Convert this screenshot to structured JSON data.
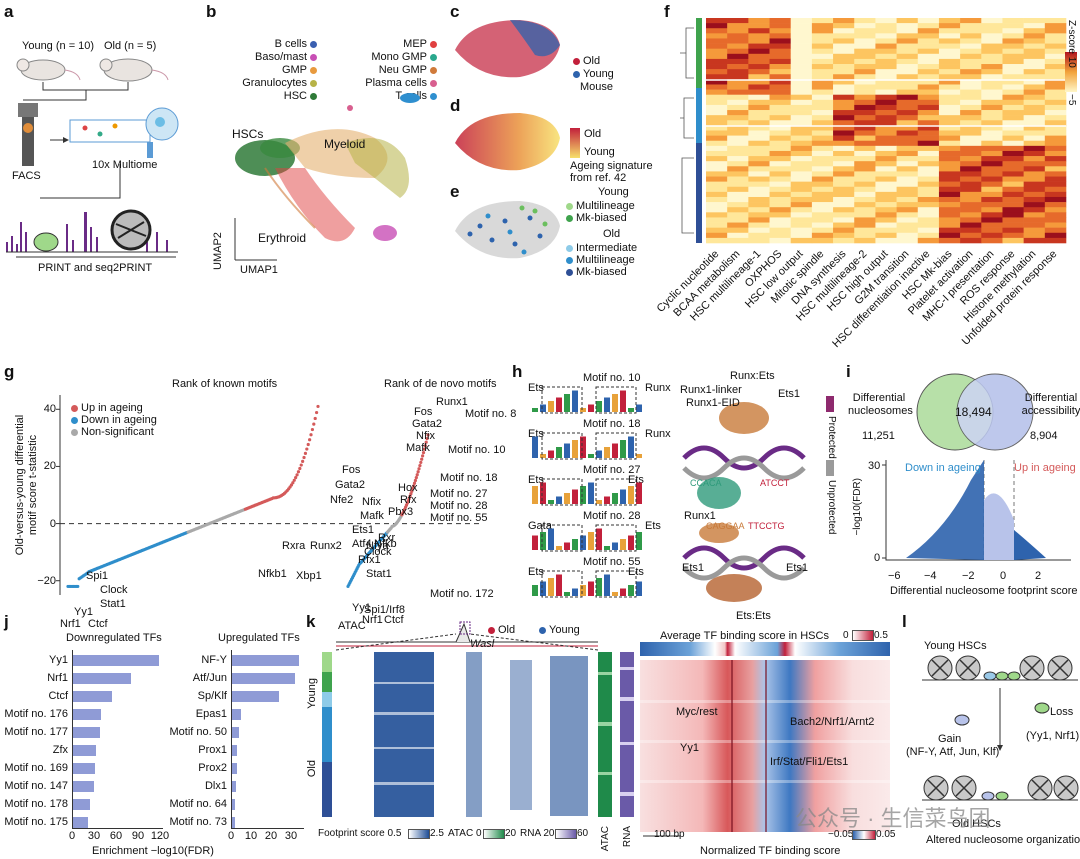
{
  "panels": {
    "a": "a",
    "b": "b",
    "c": "c",
    "d": "d",
    "e": "e",
    "f": "f",
    "g": "g",
    "h": "h",
    "i": "i",
    "j": "j",
    "k": "k",
    "l": "l"
  },
  "colors": {
    "old": "#c2203b",
    "young": "#2e63ad",
    "accent": "#8f9bd6",
    "up": "#d45a5a",
    "down": "#2f8ecb",
    "ns": "#a9a9a9"
  },
  "panel_a": {
    "young": "Young (n = 10)",
    "old": "Old (n = 5)",
    "facs": "FACS",
    "multiome": "10x Multiome",
    "print": "PRINT and seq2PRINT"
  },
  "panel_b": {
    "legend_left": [
      "B cells",
      "Baso/mast",
      "GMP",
      "Granulocytes",
      "HSC"
    ],
    "legend_right": [
      "MEP",
      "Mono GMP",
      "Neu GMP",
      "Plasma cells",
      "T cells"
    ],
    "legend_left_colors": [
      "#3a5fb0",
      "#c84fb5",
      "#e89a3e",
      "#b7b347",
      "#2f7a38"
    ],
    "legend_right_colors": [
      "#e04040",
      "#2aa88d",
      "#d07a3a",
      "#d85f8f",
      "#2f8fcf"
    ],
    "hscs": "HSCs",
    "myeloid": "Myeloid",
    "erythroid": "Erythroid",
    "umap2": "UMAP2",
    "umap1": "UMAP1"
  },
  "panel_c": {
    "old": "Old",
    "young": "Young",
    "mouse": "Mouse"
  },
  "panel_d": {
    "old": "Old",
    "young": "Young",
    "sig1": "Ageing signature",
    "sig2": "from ref. 42"
  },
  "panel_e": {
    "young_head": "Young",
    "y1": "Multilineage",
    "y2": "Mk-biased",
    "old_head": "Old",
    "o1": "Intermediate",
    "o2": "Multilineage",
    "o3": "Mk-biased"
  },
  "panel_f": {
    "columns": [
      "Cyclic nucleotide",
      "BCAA metabolism",
      "HSC multilineage-1",
      "OXPHOS",
      "HSC low output",
      "Mitotic spindle",
      "DNA synthesis",
      "HSC multilineage-2",
      "HSC high output",
      "G2M transition",
      "HSC differentiation inactive",
      "HSC Mk-bias",
      "Platelet activation",
      "MHC-I presentation",
      "ROS response",
      "Histone methylation",
      "Unfolded protein response"
    ],
    "scale_title": "Z-score",
    "scale_max": "10",
    "scale_min": "−5"
  },
  "panel_g": {
    "title_known": "Rank of known motifs",
    "title_denovo": "Rank of de novo motifs",
    "ylabel1": "Old-versus-young differential",
    "ylabel2": "motif score t-statistic",
    "legend": [
      "Up in ageing",
      "Down in ageing",
      "Non-significant"
    ],
    "yticks": [
      "40",
      "20",
      "0",
      "−20"
    ],
    "labels_known": [
      "Fos",
      "Gata2",
      "Nfe2",
      "Nfix",
      "Mafk",
      "Ets1",
      "Atf4",
      "Nfya",
      "Rfx1",
      "Runx2",
      "Rxra",
      "Xbp1",
      "Nfkb1",
      "Spi1",
      "Clock",
      "Stat1",
      "Yy1",
      "Nrf1",
      "Ctcf"
    ],
    "labels_denovo": [
      "Runx1",
      "Fos",
      "Gata2",
      "Motif no. 8",
      "Nfix",
      "Mafk",
      "Motif no. 10",
      "Motif no. 18",
      "Hox",
      "Rfx",
      "Pbx3",
      "Motif no. 27",
      "Motif no. 28",
      "Motif no. 55",
      "Rxr",
      "Clock",
      "Nfkb",
      "Stat1",
      "Motif no. 172",
      "Yy1",
      "Spi1/Irf8",
      "Nrf1",
      "Ctcf"
    ],
    "chart_data": {
      "type": "scatter",
      "title": "Rank of known motifs / Rank of de novo motifs",
      "xlabel": "",
      "ylabel": "Old-versus-young differential motif score t-statistic",
      "ylim": [
        -25,
        45
      ]
    }
  },
  "panel_h": {
    "motifs": [
      {
        "name": "Motif no. 10",
        "left": "Ets",
        "right": "Runx"
      },
      {
        "name": "Motif no. 18",
        "left": "Ets",
        "right": "Runx"
      },
      {
        "name": "Motif no. 27",
        "left": "Ets",
        "right": "Ets"
      },
      {
        "name": "Motif no. 28",
        "left": "Gata",
        "right": "Ets"
      },
      {
        "name": "Motif no. 55",
        "left": "Ets",
        "right": "Ets"
      }
    ],
    "runx_ets": "Runx:Ets",
    "runx1_linker": "Runx1-linker",
    "runx1_eid": "Runx1-EID",
    "ets1_a": "Ets1",
    "runx1": "Runx1",
    "seq1": "CCACA",
    "seq2": "ATCCT",
    "seq3": "CAGGAA",
    "seq4": "TTCCTG",
    "ets1_b": "Ets1",
    "ets1_c": "Ets1",
    "ets_ets": "Ets:Ets",
    "protected": "Protected",
    "unprotected": "Unprotected"
  },
  "panel_i": {
    "venn_left": "Differential nucleosomes",
    "venn_right": "Differential accessibility",
    "n_left": "11,251",
    "n_mid": "18,494",
    "n_right": "8,904",
    "down": "Down in ageing",
    "up": "Up in ageing",
    "ylabel": "−log10(FDR)",
    "xlabel": "Differential nucleosome footprint score",
    "yticks": [
      "30",
      "0"
    ],
    "xticks": [
      "−6",
      "−4",
      "−2",
      "0",
      "2"
    ]
  },
  "panel_j": {
    "title_down": "Downregulated TFs",
    "title_up": "Upregulated TFs",
    "xlabel": "Enrichment −log10(FDR)",
    "chart_data": [
      {
        "type": "bar",
        "title": "Downregulated TFs",
        "categories": [
          "Yy1",
          "Nrf1",
          "Ctcf",
          "Motif no. 176",
          "Motif no. 177",
          "Zfx",
          "Motif no. 169",
          "Motif no. 147",
          "Motif no. 178",
          "Motif no. 175"
        ],
        "values": [
          118,
          80,
          54,
          40,
          38,
          33,
          32,
          30,
          24,
          22
        ],
        "xlabel": "Enrichment −log10(FDR)",
        "xlim": [
          0,
          120
        ],
        "xticks": [
          "0",
          "30",
          "60",
          "90",
          "120"
        ]
      },
      {
        "type": "bar",
        "title": "Upregulated TFs",
        "categories": [
          "NF-Y",
          "Atf/Jun",
          "Sp/Klf",
          "Epas1",
          "Motif no. 50",
          "Prox1",
          "Prox2",
          "Dlx1",
          "Motif no. 64",
          "Motif no. 73"
        ],
        "values": [
          34,
          32,
          24,
          5,
          4,
          3,
          3,
          2.5,
          2,
          2
        ],
        "xlabel": "Enrichment −log10(FDR)",
        "xlim": [
          0,
          35
        ],
        "xticks": [
          "0",
          "10",
          "20",
          "30"
        ]
      }
    ]
  },
  "panel_k": {
    "atac": "ATAC",
    "old": "Old",
    "young": "Young",
    "gene": "Wasl",
    "row_young": "Young",
    "row_old": "Old",
    "fp_label": "Footprint score",
    "fp_min": "0.5",
    "fp_max": "2.5",
    "atac_label": "ATAC",
    "atac_min": "0",
    "atac_max": "20",
    "rna_label": "RNA",
    "rna_min": "20",
    "rna_max": "60",
    "col_atac": "ATAC",
    "col_rna": "RNA",
    "avg_title": "Average TF binding score in HSCs",
    "avg_min": "0",
    "avg_max": "0.5",
    "myc": "Myc/rest",
    "bach2": "Bach2/Nrf1/Arnt2",
    "yy1": "Yy1",
    "irf": "Irf/Stat/Fli1/Ets1",
    "bp": "100 bp",
    "norm_label": "Normalized TF binding score",
    "norm_min": "−0.05",
    "norm_max": "0.05"
  },
  "panel_l": {
    "young": "Young HSCs",
    "gain": "Gain",
    "gain2": "(NF-Y, Atf, Jun, Klf)",
    "loss": "Loss",
    "loss2": "(Yy1, Nrf1)",
    "old": "Old HSCs",
    "altered": "Altered nucleosome organization"
  },
  "watermark": "公众号 · 生信菜鸟团"
}
